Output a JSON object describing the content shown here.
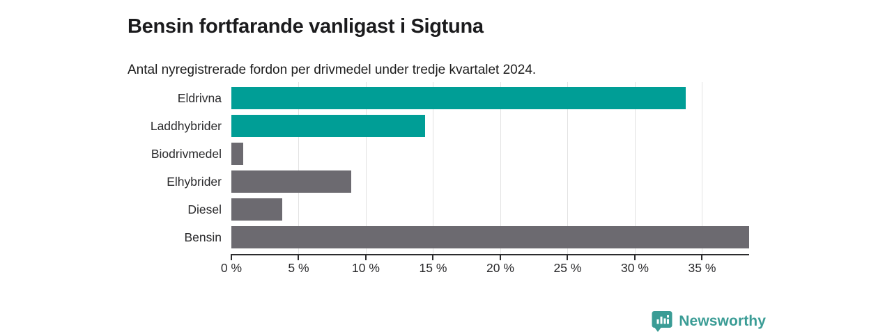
{
  "chart_data": {
    "type": "bar",
    "orientation": "horizontal",
    "title": "Bensin fortfarande vanligast i Sigtuna",
    "subtitle": "Antal nyregistrerade fordon per drivmedel under tredje kvartalet 2024.",
    "categories": [
      "Eldrivna",
      "Laddhybrider",
      "Biodrivmedel",
      "Elhybrider",
      "Diesel",
      "Bensin"
    ],
    "values": [
      33.8,
      14.4,
      0.9,
      8.9,
      3.8,
      38.5
    ],
    "unit": "%",
    "bar_colors": [
      "#009e96",
      "#009e96",
      "#6c6a70",
      "#6c6a70",
      "#6c6a70",
      "#6c6a70"
    ],
    "xlabel": "",
    "ylabel": "",
    "xlim": [
      0,
      38.5
    ],
    "x_ticks": [
      0,
      5,
      10,
      15,
      20,
      25,
      30,
      35
    ],
    "x_tick_labels": [
      "0 %",
      "5 %",
      "10 %",
      "15 %",
      "20 %",
      "25 %",
      "30 %",
      "35 %"
    ],
    "grid": "vertical-only",
    "legend": "none"
  },
  "colors": {
    "teal_bar": "#009e96",
    "gray_bar": "#6c6a70",
    "gridline": "#e2e2e2",
    "axis": "#2c2c2e",
    "logo_teal": "#3a9c95"
  },
  "branding": {
    "logo_text": "Newsworthy",
    "logo_icon": "bar-chart-speech-bubble-icon"
  }
}
